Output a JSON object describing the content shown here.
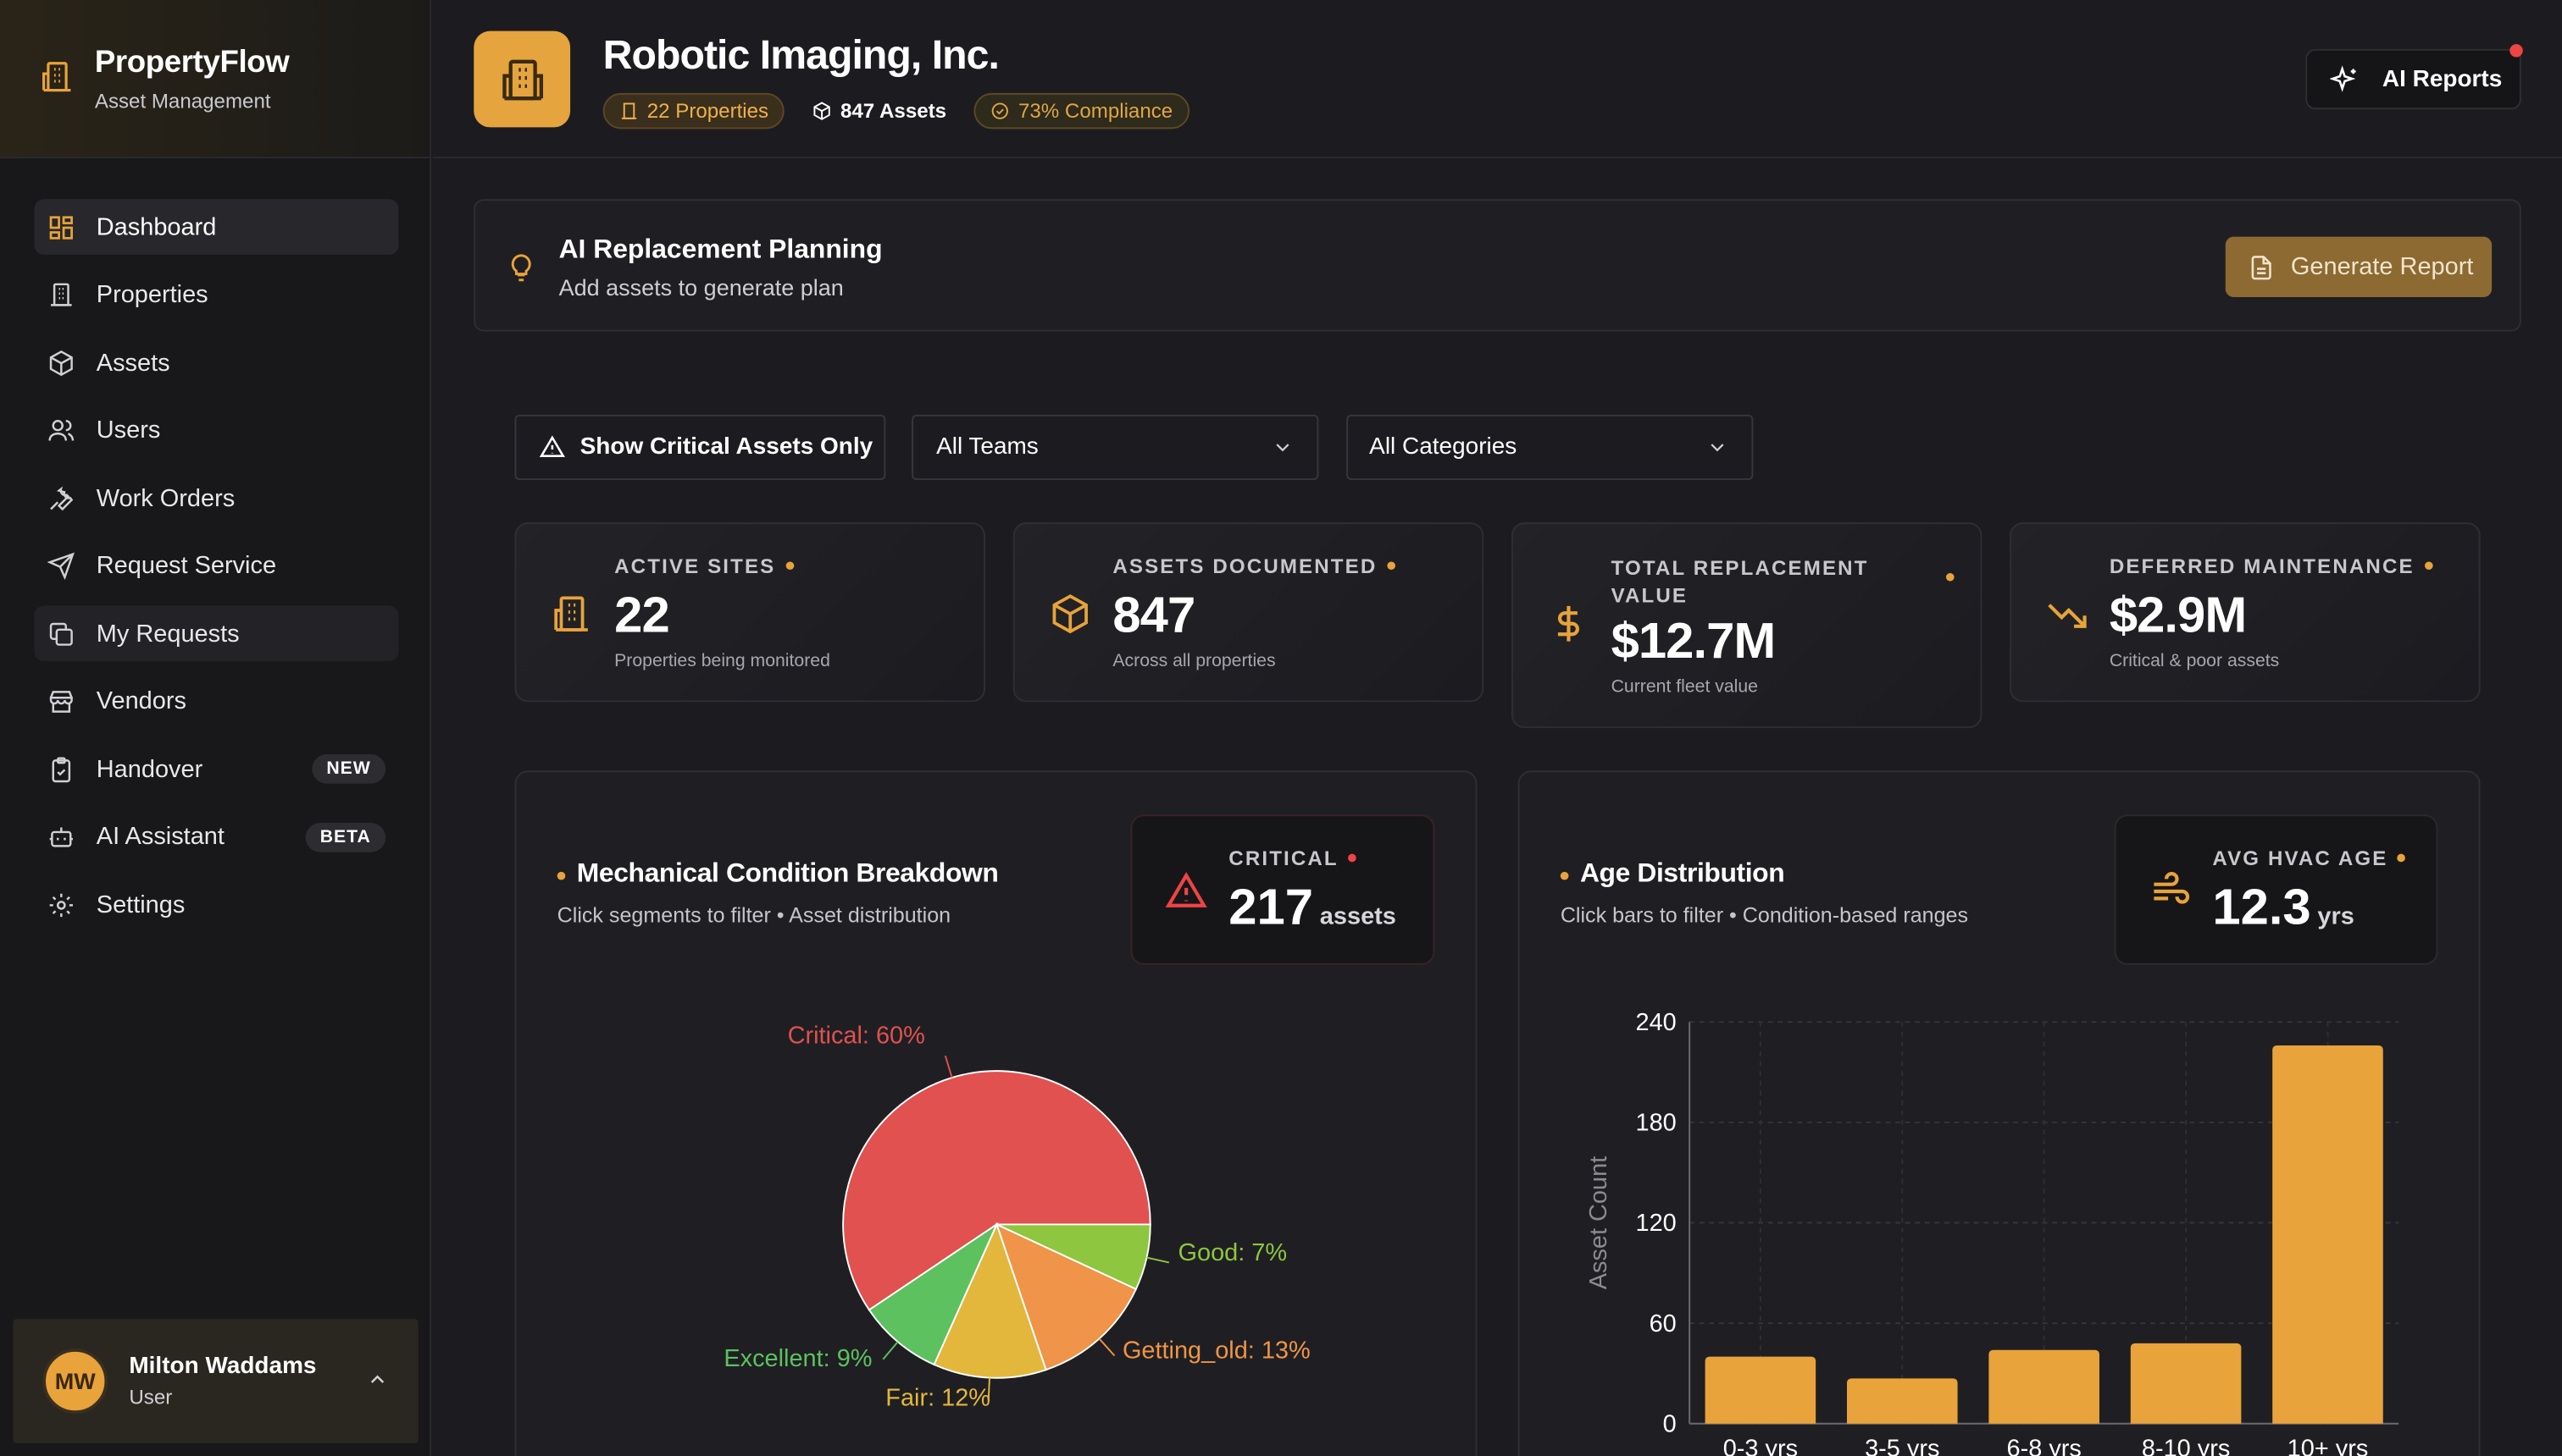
{
  "sidebar": {
    "brand_title": "PropertyFlow",
    "brand_sub": "Asset Management",
    "items": [
      {
        "label": "Dashboard"
      },
      {
        "label": "Properties"
      },
      {
        "label": "Assets"
      },
      {
        "label": "Users"
      },
      {
        "label": "Work Orders"
      },
      {
        "label": "Request Service"
      },
      {
        "label": "My Requests"
      },
      {
        "label": "Vendors"
      },
      {
        "label": "Handover",
        "badge": "NEW"
      },
      {
        "label": "AI Assistant",
        "badge": "BETA"
      },
      {
        "label": "Settings"
      }
    ],
    "user": {
      "initials": "MW",
      "name": "Milton Waddams",
      "role": "User"
    }
  },
  "header": {
    "org_name": "Robotic Imaging, Inc.",
    "chips": {
      "properties": "22 Properties",
      "assets": "847 Assets",
      "compliance": "73% Compliance"
    },
    "ai_reports": "AI Reports"
  },
  "plan": {
    "title": "AI Replacement Planning",
    "subtitle": "Add assets to generate plan",
    "button": "Generate Report"
  },
  "filters": {
    "critical": "Show Critical Assets Only",
    "teams": "All Teams",
    "categories": "All Categories"
  },
  "stats": [
    {
      "label": "ACTIVE SITES",
      "value": "22",
      "sub": "Properties being monitored"
    },
    {
      "label": "ASSETS DOCUMENTED",
      "value": "847",
      "sub": "Across all properties"
    },
    {
      "label": "TOTAL REPLACEMENT VALUE",
      "value": "$12.7M",
      "sub": "Current fleet value"
    },
    {
      "label": "DEFERRED MAINTENANCE",
      "value": "$2.9M",
      "sub": "Critical & poor assets"
    }
  ],
  "condition_panel": {
    "title": "Mechanical Condition Breakdown",
    "subtitle": "Click segments to filter • Asset distribution",
    "pill_label": "CRITICAL",
    "pill_value": "217",
    "pill_unit": "assets"
  },
  "age_panel": {
    "title": "Age Distribution",
    "subtitle": "Click bars to filter • Condition-based ranges",
    "pill_label": "AVG HVAC AGE",
    "pill_value": "12.3",
    "pill_unit": "yrs"
  },
  "colors": {
    "accent": "#e8a33a",
    "critical": "#e05150",
    "good": "#8ec63f",
    "excellent": "#5cc15e",
    "fair": "#e3b73c",
    "getting_old": "#ef9448"
  },
  "chart_data": [
    {
      "type": "pie",
      "slices": [
        {
          "label": "Critical: 60%",
          "value": 60,
          "color": "#e05150"
        },
        {
          "label": "Good: 7%",
          "value": 7,
          "color": "#8ec63f"
        },
        {
          "label": "Getting_old: 13%",
          "value": 13,
          "color": "#ef9448"
        },
        {
          "label": "Fair: 12%",
          "value": 12,
          "color": "#e3b73c"
        },
        {
          "label": "Excellent: 9%",
          "value": 9,
          "color": "#5cc15e"
        }
      ]
    },
    {
      "type": "bar",
      "categories": [
        "0-3 yrs",
        "3-5 yrs",
        "6-8 yrs",
        "8-10 yrs",
        "10+ yrs"
      ],
      "values": [
        40,
        27,
        44,
        48,
        226
      ],
      "ylabel": "Asset Count",
      "ylim": [
        0,
        240
      ],
      "yticks": [
        0,
        60,
        120,
        180,
        240
      ],
      "grid": true
    }
  ]
}
